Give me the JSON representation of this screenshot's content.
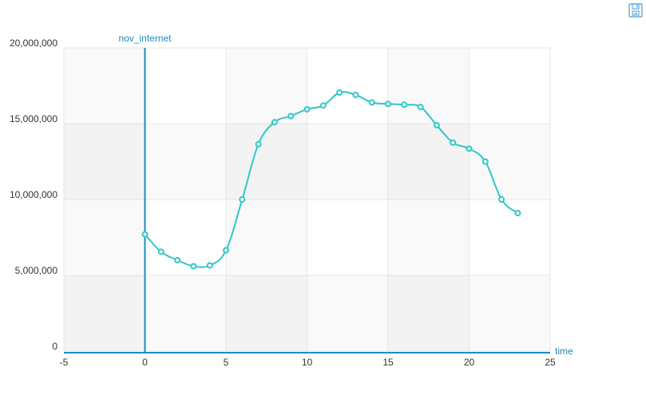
{
  "toolbar": {
    "save_icon": "save-icon"
  },
  "colors": {
    "axis": "#1f8bbf",
    "line": "#2ec7c9",
    "grid": "#e6e6e6",
    "band_dark": "#f2f2f2",
    "band_light": "#f9f9f9"
  },
  "chart_data": {
    "type": "line",
    "xlabel": "time",
    "ylabel": "nov_internet",
    "xlim": [
      -5,
      25
    ],
    "ylim": [
      0,
      20000000
    ],
    "x_ticks": [
      "-5",
      "0",
      "5",
      "10",
      "15",
      "20",
      "25"
    ],
    "y_ticks": [
      "0",
      "5,000,000",
      "10,000,000",
      "15,000,000",
      "20,000,000"
    ],
    "smooth": true,
    "series": [
      {
        "x": [
          0,
          1,
          2,
          3,
          4,
          5,
          6,
          7,
          8,
          9,
          10,
          11,
          12,
          13,
          14,
          15,
          16,
          17,
          18,
          19,
          20,
          21,
          22,
          23
        ],
        "values": [
          7700000,
          6550000,
          6000000,
          5600000,
          5650000,
          6650000,
          10000000,
          13650000,
          15100000,
          15500000,
          15950000,
          16200000,
          17050000,
          16900000,
          16400000,
          16300000,
          16250000,
          16100000,
          14900000,
          13750000,
          13350000,
          12500000,
          10000000,
          9100000
        ]
      }
    ]
  }
}
